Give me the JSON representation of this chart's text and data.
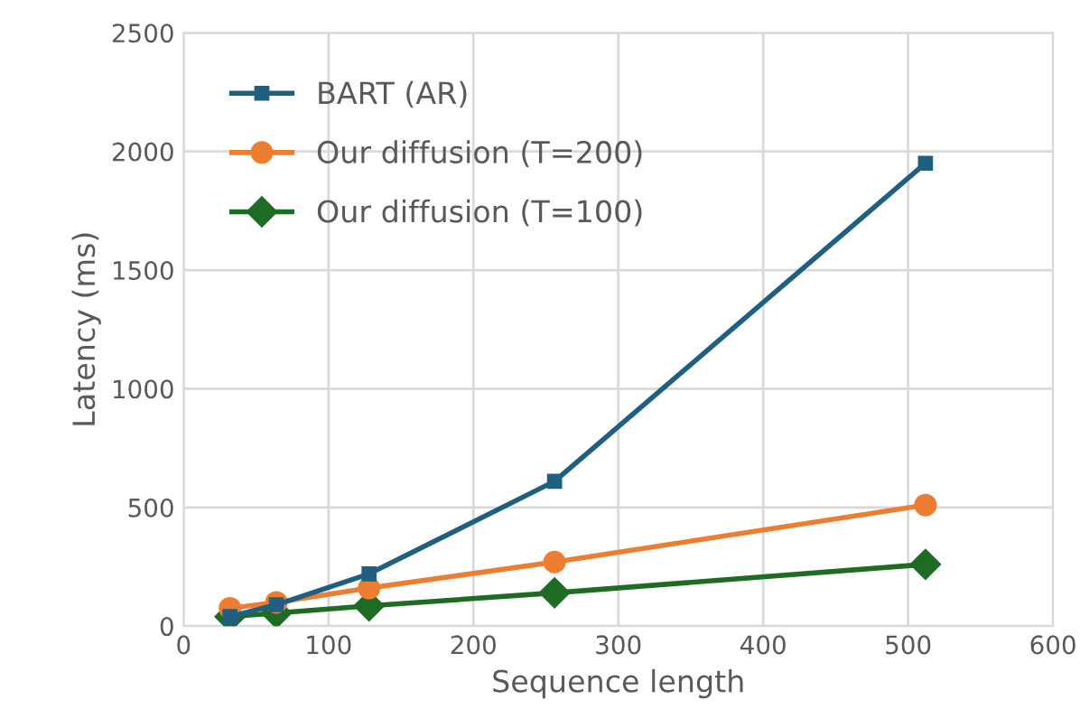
{
  "chart_data": {
    "type": "line",
    "xlabel": "Sequence length",
    "ylabel": "Latency (ms)",
    "x": [
      32,
      64,
      128,
      256,
      512
    ],
    "series": [
      {
        "name": "BART (AR)",
        "color": "#1f5f82",
        "marker": "square",
        "values": [
          40,
          90,
          220,
          610,
          1950
        ]
      },
      {
        "name": "Our diffusion (T=200)",
        "color": "#ed7d31",
        "marker": "circle",
        "values": [
          75,
          100,
          160,
          270,
          510
        ]
      },
      {
        "name": "Our diffusion (T=100)",
        "color": "#1e6b24",
        "marker": "diamond",
        "values": [
          40,
          55,
          85,
          140,
          260
        ]
      }
    ],
    "xlim": [
      0,
      600
    ],
    "xticks": [
      0,
      100,
      200,
      300,
      400,
      500,
      600
    ],
    "ylim": [
      0,
      2500
    ],
    "yticks": [
      0,
      500,
      1000,
      1500,
      2000,
      2500
    ],
    "grid": true,
    "legend": "top left"
  }
}
